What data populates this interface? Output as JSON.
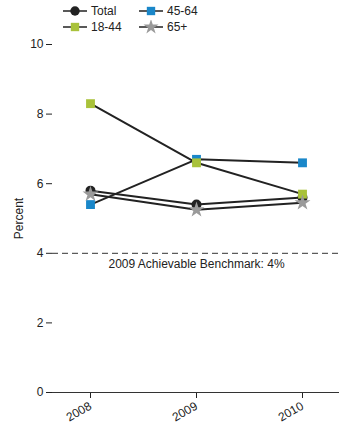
{
  "chart_data": {
    "type": "line",
    "x": [
      2008,
      2009,
      2010
    ],
    "series": [
      {
        "name": "Total",
        "color": "#222222",
        "marker": "circle",
        "values": [
          5.8,
          5.4,
          5.6
        ]
      },
      {
        "name": "45-64",
        "color": "#1a87c9",
        "marker": "square",
        "values": [
          5.4,
          6.7,
          6.6
        ]
      },
      {
        "name": "18-44",
        "color": "#a9c23a",
        "marker": "square",
        "values": [
          8.3,
          6.6,
          5.7
        ]
      },
      {
        "name": "65+",
        "color": "#9a9a9a",
        "marker": "star",
        "values": [
          5.7,
          5.25,
          5.45
        ]
      }
    ],
    "ylabel": "Percent",
    "ylim": [
      0,
      10
    ],
    "yticks": [
      0,
      2,
      4,
      6,
      8,
      10
    ],
    "grid": false,
    "legend": "top-left",
    "annotations": [
      {
        "y": 4,
        "text": "2009 Achievable Benchmark: 4%",
        "line_style": "dashed"
      }
    ]
  }
}
